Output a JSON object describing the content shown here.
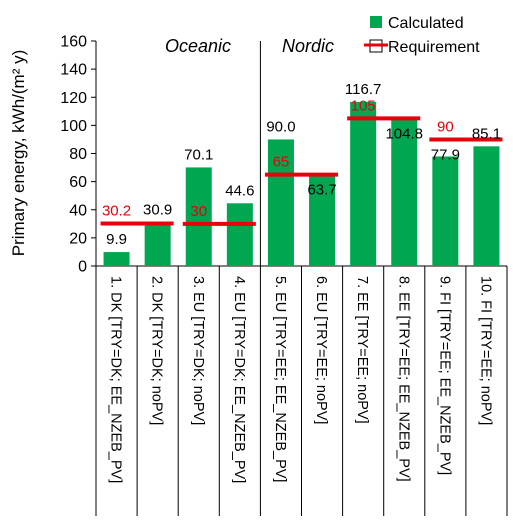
{
  "chart_data": {
    "type": "bar",
    "title": "",
    "ylabel": "Primary energy, kWh/(m² y)",
    "ylim": [
      0,
      160
    ],
    "yticks": [
      0,
      20,
      40,
      60,
      80,
      100,
      120,
      140,
      160
    ],
    "grid": false,
    "legend_position": "top-right",
    "groups": [
      "Oceanic",
      "Nordic"
    ],
    "categories": [
      "1. DK [TRY=DK; EE_NZEB_PV]",
      "2. DK [TRY=DK; noPV]",
      "3. EU [TRY=DK; noPV]",
      "4. EU [TRY=DK; EE_NZEB_PV]",
      "5. EU [TRY=EE; EE_NZEB_PV]",
      "6. EU [TRY=EE; noPV]",
      "7. EE [TRY=EE; noPV]",
      "8. EE [TRY=EE; EE_NZEB_PV]",
      "9. FI [TRY=EE; EE_NZEB_PV]",
      "10. FI [TRY=EE; noPV]"
    ],
    "series": [
      {
        "name": "Calculated",
        "color": "#00a650",
        "values": [
          9.9,
          30.9,
          70.1,
          44.6,
          90.0,
          63.7,
          116.7,
          104.8,
          77.9,
          85.1
        ],
        "labels": [
          "9.9",
          "30.9",
          "70.1",
          "44.6",
          "90.0",
          "63.7",
          "116.7",
          "104.8",
          "77.9",
          "85.1"
        ]
      },
      {
        "name": "Requirement",
        "color": "#e8000b",
        "values": [
          30.2,
          30.2,
          30,
          30,
          65,
          65,
          105,
          105,
          90,
          90
        ],
        "labels": [
          "30.2",
          "30",
          "65",
          "105",
          "90"
        ]
      }
    ]
  }
}
